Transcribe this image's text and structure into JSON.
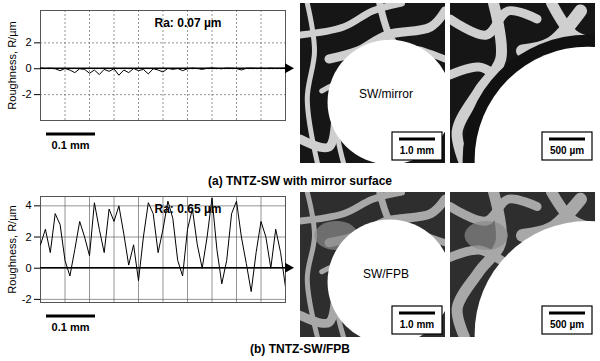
{
  "chart_data": [
    {
      "type": "line",
      "caption": "(a) TNTZ-SW with mirror surface",
      "y_label": "Roughness, R/µm",
      "annotations": [
        "Ra: 0.07 µm"
      ],
      "scale_bar": {
        "label": "0.1 mm",
        "length": 0.1
      },
      "x": [
        0,
        0.01,
        0.02,
        0.03,
        0.04,
        0.05,
        0.06,
        0.07,
        0.08,
        0.09,
        0.1,
        0.11,
        0.12,
        0.13,
        0.14,
        0.15,
        0.16,
        0.17,
        0.18,
        0.19,
        0.2,
        0.21,
        0.22,
        0.23,
        0.24,
        0.25,
        0.26,
        0.27,
        0.28,
        0.29,
        0.3,
        0.31,
        0.32,
        0.33,
        0.34,
        0.35,
        0.36,
        0.37,
        0.38,
        0.39,
        0.4,
        0.41,
        0.42,
        0.43,
        0.44,
        0.45,
        0.46,
        0.47,
        0.48,
        0.49,
        0.5
      ],
      "values": [
        0.05,
        0.02,
        0.04,
        0.0,
        -0.15,
        0.02,
        -0.1,
        -0.3,
        0.0,
        -0.05,
        -0.35,
        -0.1,
        -0.45,
        -0.05,
        -0.2,
        0.0,
        -0.5,
        -0.1,
        -0.3,
        0.02,
        -0.15,
        -0.05,
        -0.4,
        0.0,
        -0.1,
        -0.25,
        0.03,
        -0.05,
        0.02,
        -0.15,
        0.0,
        0.05,
        0.02,
        -0.05,
        0.04,
        0.05,
        0.03,
        0.0,
        0.05,
        0.04,
        0.02,
        -0.1,
        0.04,
        0.05,
        0.03,
        0.04,
        0.02,
        0.05,
        0.03,
        0.04,
        0.05
      ],
      "color": "#000000",
      "xlim": [
        0,
        0.5
      ],
      "xticks": [
        0,
        0.05,
        0.1,
        0.15,
        0.2,
        0.25,
        0.3,
        0.35,
        0.4,
        0.45,
        0.5
      ],
      "ylim": [
        -4,
        4.5
      ],
      "yticks": [
        -2,
        0,
        2
      ],
      "grid": true,
      "tick_labels": "y"
    },
    {
      "type": "line",
      "caption": "(b) TNTZ-SW/FPB",
      "y_label": "Roughness, R/µm",
      "annotations": [
        "Ra: 0.65 µm"
      ],
      "scale_bar": {
        "label": "0.1 mm",
        "length": 0.1
      },
      "x": [
        0,
        0.01,
        0.02,
        0.03,
        0.04,
        0.05,
        0.06,
        0.07,
        0.08,
        0.09,
        0.1,
        0.11,
        0.12,
        0.13,
        0.14,
        0.15,
        0.16,
        0.17,
        0.18,
        0.19,
        0.2,
        0.21,
        0.22,
        0.23,
        0.24,
        0.25,
        0.26,
        0.27,
        0.28,
        0.29,
        0.3,
        0.31,
        0.32,
        0.33,
        0.34,
        0.35,
        0.36,
        0.37,
        0.38,
        0.39,
        0.4,
        0.41,
        0.42,
        0.43,
        0.44,
        0.45,
        0.46,
        0.47,
        0.48,
        0.49,
        0.5
      ],
      "values": [
        1.5,
        2.5,
        1.0,
        3.5,
        2.8,
        0.5,
        -0.5,
        1.2,
        3.0,
        2.0,
        0.8,
        4.2,
        2.5,
        1.0,
        3.8,
        3.0,
        4.0,
        2.2,
        0.2,
        1.5,
        -0.8,
        2.0,
        4.2,
        3.5,
        1.0,
        2.5,
        4.3,
        3.2,
        0.5,
        -0.5,
        2.5,
        3.8,
        1.5,
        0.0,
        2.0,
        4.5,
        1.2,
        -1.0,
        0.5,
        3.5,
        4.3,
        2.0,
        0.3,
        -1.5,
        1.0,
        3.0,
        2.0,
        0.0,
        2.5,
        1.0,
        -1.2
      ],
      "color": "#000000",
      "xlim": [
        0,
        0.5
      ],
      "xticks": [
        0,
        0.05,
        0.1,
        0.15,
        0.2,
        0.25,
        0.3,
        0.35,
        0.4,
        0.45,
        0.5
      ],
      "ylim": [
        -2.2,
        4.6
      ],
      "yticks": [
        -2,
        0,
        2,
        4
      ],
      "grid": true,
      "tick_labels": "y"
    }
  ],
  "images": [
    [
      {
        "label": "SW/mirror",
        "scale_bar": "1.0 mm"
      },
      {
        "scale_bar": "500 µm"
      }
    ],
    [
      {
        "label": "SW/FPB",
        "scale_bar": "1.0 mm"
      },
      {
        "scale_bar": "500 µm"
      }
    ]
  ]
}
